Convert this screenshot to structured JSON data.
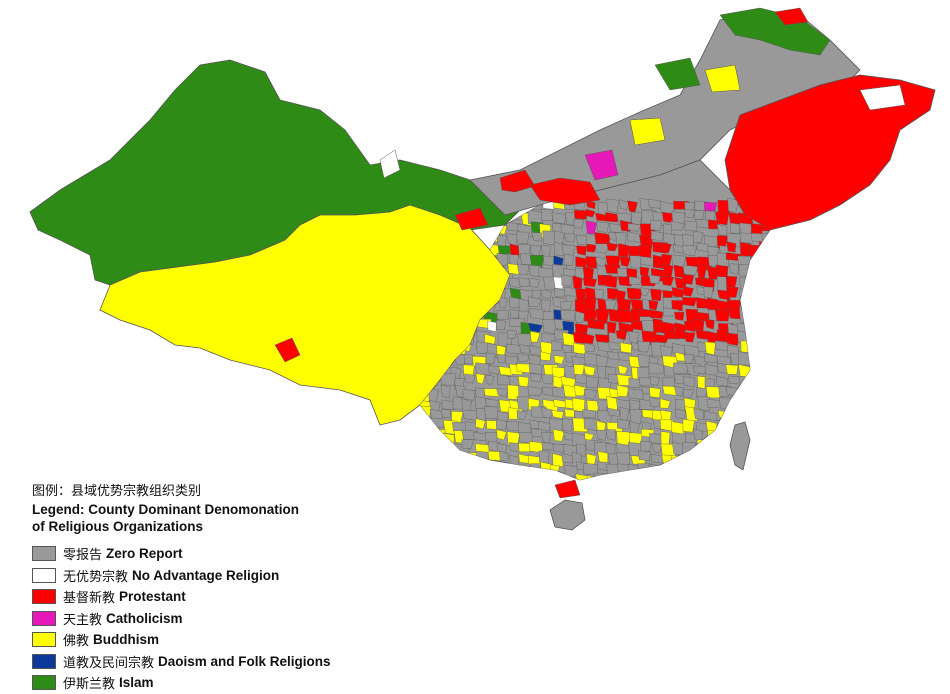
{
  "colors": {
    "zero": "#999999",
    "none": "#ffffff",
    "protestant": "#ff0000",
    "catholic": "#e619b8",
    "buddhism": "#ffff00",
    "daoism": "#0b3a9a",
    "islam": "#2e8b16",
    "border": "#555555"
  },
  "legend": {
    "title_cn": "图例：县域优势宗教组织类别",
    "title_en_1": "Legend: County Dominant Denomonation",
    "title_en_2": "of Religious Organizations",
    "items": [
      {
        "key": "zero",
        "cn": "零报告",
        "en": "Zero Report",
        "icon": "gray-swatch"
      },
      {
        "key": "none",
        "cn": "无优势宗教",
        "en": "No Advantage Religion",
        "icon": "white-swatch"
      },
      {
        "key": "protestant",
        "cn": "基督新教",
        "en": "Protestant",
        "icon": "red-swatch"
      },
      {
        "key": "catholic",
        "cn": "天主教",
        "en": "Catholicism",
        "icon": "magenta-swatch"
      },
      {
        "key": "buddhism",
        "cn": "佛教",
        "en": "Buddhism",
        "icon": "yellow-swatch"
      },
      {
        "key": "daoism",
        "cn": "道教及民间宗教",
        "en": "Daoism and Folk Religions",
        "icon": "blue-swatch"
      },
      {
        "key": "islam",
        "cn": "伊斯兰教",
        "en": "Islam",
        "icon": "green-swatch"
      }
    ]
  }
}
